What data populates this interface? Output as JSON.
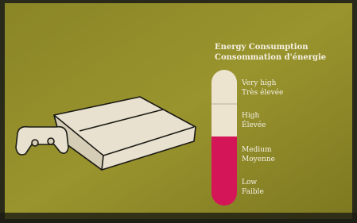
{
  "panel": {
    "title": "Energy Consumption",
    "subtitle": "Consommation d'énergie",
    "levels": [
      {
        "label": "Very high",
        "label_fr": "Très élevée"
      },
      {
        "label": "High",
        "label_fr": "Élevée"
      },
      {
        "label": "Medium",
        "label_fr": "Moyenne"
      },
      {
        "label": "Low",
        "label_fr": "Faible"
      }
    ]
  }
}
